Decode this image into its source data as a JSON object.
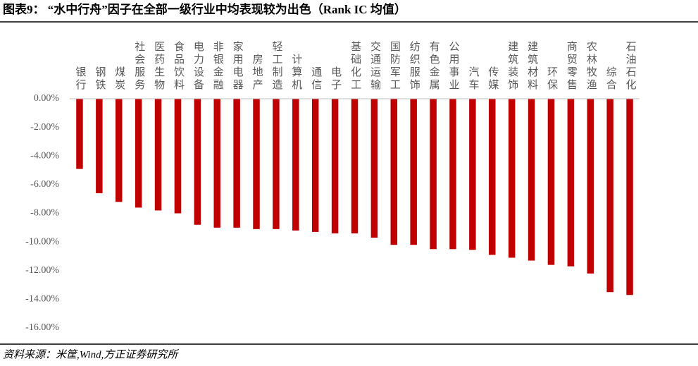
{
  "chart_data": {
    "type": "bar",
    "title": "图表9：  “水中行舟”因子在全部一级行业中均表现较为出色（Rank IC 均值）",
    "source": "资料来源：米筐,Wind,方正证券研究所",
    "categories": [
      "银行",
      "钢铁",
      "煤炭",
      "社会服务",
      "医药生物",
      "食品饮料",
      "电力设备",
      "非银金融",
      "家用电器",
      "房地产",
      "轻工制造",
      "计算机",
      "通信",
      "电子",
      "基础化工",
      "交通运输",
      "国防军工",
      "纺织服饰",
      "有色金属",
      "公用事业",
      "汽车",
      "传媒",
      "建筑装饰",
      "建筑材料",
      "环保",
      "商贸零售",
      "农林牧渔",
      "综合",
      "石油石化"
    ],
    "values": [
      -4.9,
      -6.6,
      -7.2,
      -7.6,
      -7.8,
      -8.0,
      -8.8,
      -9.0,
      -9.0,
      -9.1,
      -9.1,
      -9.2,
      -9.3,
      -9.4,
      -9.4,
      -9.7,
      -10.2,
      -10.2,
      -10.5,
      -10.5,
      -10.55,
      -10.9,
      -11.1,
      -11.3,
      -11.6,
      -11.7,
      -12.2,
      -13.5,
      -13.7
    ],
    "color": "#c00000",
    "ylim": [
      -16,
      0
    ],
    "yticks": [
      {
        "value": 0,
        "label": "0.00%"
      },
      {
        "value": -2,
        "label": "-2.00%"
      },
      {
        "value": -4,
        "label": "-4.00%"
      },
      {
        "value": -6,
        "label": "-6.00%"
      },
      {
        "value": -8,
        "label": "-8.00%"
      },
      {
        "value": -10,
        "label": "-10.00%"
      },
      {
        "value": -12,
        "label": "-12.00%"
      },
      {
        "value": -14,
        "label": "-14.00%"
      },
      {
        "value": -16,
        "label": "-16.00%"
      }
    ],
    "grid": false
  }
}
